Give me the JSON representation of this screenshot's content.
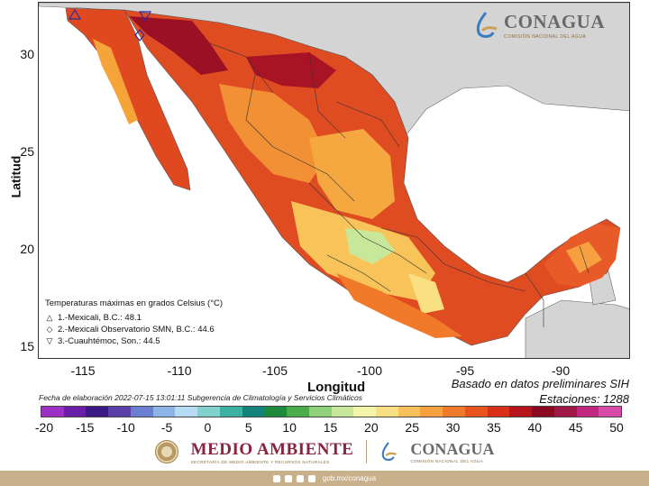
{
  "map": {
    "y_ticks": [
      "30",
      "25",
      "20",
      "15"
    ],
    "x_ticks": [
      "-115",
      "-110",
      "-105",
      "-100",
      "-95",
      "-90"
    ],
    "xlabel": "Longitud",
    "ylabel": "Latitud",
    "lon_range": [
      -117,
      -86
    ],
    "lat_range": [
      14,
      32.5
    ]
  },
  "legend": {
    "title": "Temperaturas máximas en grados Celsius (°C)",
    "items": [
      {
        "symbol": "△",
        "text": "1.-Mexicali, B.C.: 48.1"
      },
      {
        "symbol": "◇",
        "text": "2.-Mexicali Observatorio SMN, B.C.: 44.6"
      },
      {
        "symbol": "▽",
        "text": "3.-Cuauhtémoc, Son.: 44.5"
      }
    ]
  },
  "source_note": {
    "line1": "Basado en datos preliminares SIH",
    "line2": "Estaciones:  1288"
  },
  "fecha": "Fecha de elaboración 2022-07-15 13:01:11 Subgerencia de Climatología y Servicios Climáticos",
  "colorbar": {
    "labels": [
      "-20",
      "-15",
      "-10",
      "-5",
      "0",
      "5",
      "10",
      "15",
      "20",
      "25",
      "30",
      "35",
      "40",
      "45",
      "50"
    ],
    "colors": [
      "#9c2fc4",
      "#6a1fa8",
      "#3b1a86",
      "#5a3fa8",
      "#6b7fd0",
      "#8db4e8",
      "#b7dbf2",
      "#82d1cc",
      "#3db0a4",
      "#14847a",
      "#1d8a3e",
      "#4aad4a",
      "#8fd07a",
      "#c7e89a",
      "#f4f4a8",
      "#f8df82",
      "#f8c05a",
      "#f6a042",
      "#f07a2a",
      "#e8541e",
      "#d82e1a",
      "#b8141c",
      "#8a0a22",
      "#a01848",
      "#c02880",
      "#d84aa8"
    ]
  },
  "brand_top": {
    "name": "CONAGUA",
    "sub": "COMISIÓN NACIONAL DEL AGUA"
  },
  "footer": {
    "ma_title": "MEDIO AMBIENTE",
    "ma_sub": "SECRETARÍA DE MEDIO AMBIENTE Y RECURSOS NATURALES",
    "cg_title": "CONAGUA",
    "cg_sub": "COMISIÓN NACIONAL DEL AGUA",
    "url": "gob.mx/conagua"
  },
  "colors": {
    "land_hot": "#d83a1e",
    "land_warm": "#f08a2e",
    "land_mild": "#f8c45a",
    "land_very_hot": "#9a1024",
    "neighbor_land": "#d4d4d4",
    "accent_brown": "#c7b08a"
  }
}
